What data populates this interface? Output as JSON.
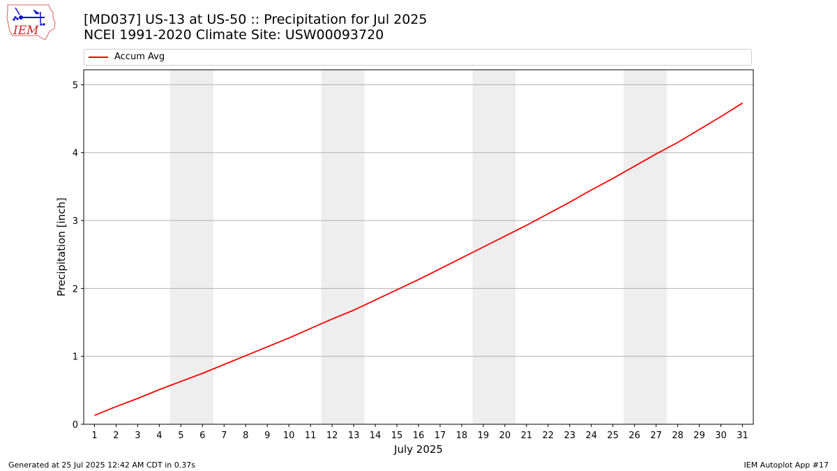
{
  "logo": {
    "text": "IEM",
    "colors": {
      "outline": "#d96060",
      "text": "#cc2222",
      "instruments": "#1010cc"
    }
  },
  "header": {
    "title_line1": "[MD037] US-13 at US-50 :: Precipitation for Jul 2025",
    "title_line2": "NCEI 1991-2020 Climate Site: USW00093720"
  },
  "legend": {
    "label": "Accum Avg",
    "color": "#ff0000"
  },
  "footer": {
    "left": "Generated at 25 Jul 2025 12:42 AM CDT in 0.37s",
    "right": "IEM Autoplot App #17"
  },
  "chart_data": {
    "type": "line",
    "title": "[MD037] US-13 at US-50 :: Precipitation for Jul 2025",
    "subtitle": "NCEI 1991-2020 Climate Site: USW00093720",
    "xlabel": "July 2025",
    "ylabel": "Precipitation [inch]",
    "x": [
      1,
      2,
      3,
      4,
      5,
      6,
      7,
      8,
      9,
      10,
      11,
      12,
      13,
      14,
      15,
      16,
      17,
      18,
      19,
      20,
      21,
      22,
      23,
      24,
      25,
      26,
      27,
      28,
      29,
      30,
      31
    ],
    "series": [
      {
        "name": "Accum Avg",
        "color": "#ff0000",
        "values": [
          0.13,
          0.26,
          0.38,
          0.51,
          0.63,
          0.75,
          0.88,
          1.01,
          1.14,
          1.27,
          1.41,
          1.55,
          1.68,
          1.83,
          1.98,
          2.13,
          2.29,
          2.45,
          2.61,
          2.77,
          2.93,
          3.1,
          3.27,
          3.45,
          3.62,
          3.8,
          3.98,
          4.15,
          4.34,
          4.53,
          4.73
        ]
      }
    ],
    "xlim": [
      0.5,
      31.5
    ],
    "ylim": [
      0,
      5.22
    ],
    "yticks": [
      0,
      1,
      2,
      3,
      4,
      5
    ],
    "xticks": [
      1,
      2,
      3,
      4,
      5,
      6,
      7,
      8,
      9,
      10,
      11,
      12,
      13,
      14,
      15,
      16,
      17,
      18,
      19,
      20,
      21,
      22,
      23,
      24,
      25,
      26,
      27,
      28,
      29,
      30,
      31
    ],
    "weekend_bands": [
      [
        4.5,
        6.5
      ],
      [
        11.5,
        13.5
      ],
      [
        18.5,
        20.5
      ],
      [
        25.5,
        27.5
      ]
    ],
    "band_color": "#eeeeee",
    "grid": "y",
    "grid_color": "#b0b0b0",
    "legend_position": "top"
  }
}
